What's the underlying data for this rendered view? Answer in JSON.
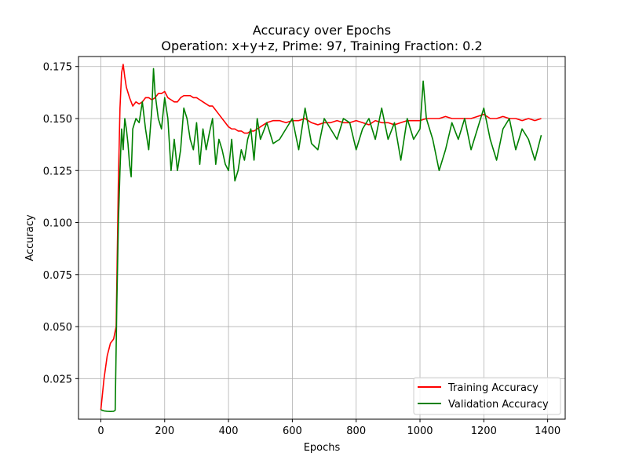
{
  "chart_data": {
    "type": "line",
    "title": "Accuracy over Epochs",
    "subtitle": "Operation: x+y+z, Prime: 97, Training Fraction: 0.2",
    "xlabel": "Epochs",
    "ylabel": "Accuracy",
    "xlim": [
      -70,
      1455
    ],
    "ylim": [
      0.0055,
      0.1798
    ],
    "x_ticks": [
      0,
      200,
      400,
      600,
      800,
      1000,
      1200,
      1400
    ],
    "y_ticks": [
      0.025,
      0.05,
      0.075,
      0.1,
      0.125,
      0.15,
      0.175
    ],
    "x_tick_labels": [
      "0",
      "200",
      "400",
      "600",
      "800",
      "1000",
      "1200",
      "1400"
    ],
    "y_tick_labels": [
      "0.025",
      "0.050",
      "0.075",
      "0.100",
      "0.125",
      "0.150",
      "0.175"
    ],
    "grid": true,
    "legend_position": "lower-right",
    "series": [
      {
        "name": "Training Accuracy",
        "color": "#ff0000",
        "x": [
          0,
          10,
          20,
          30,
          40,
          48,
          55,
          60,
          65,
          70,
          75,
          80,
          90,
          100,
          110,
          120,
          130,
          140,
          150,
          160,
          170,
          180,
          190,
          200,
          210,
          220,
          230,
          240,
          250,
          260,
          270,
          280,
          290,
          300,
          310,
          320,
          330,
          340,
          350,
          360,
          370,
          380,
          390,
          400,
          410,
          420,
          430,
          440,
          450,
          460,
          470,
          480,
          490,
          500,
          520,
          540,
          560,
          580,
          600,
          620,
          640,
          660,
          680,
          700,
          720,
          740,
          760,
          780,
          800,
          820,
          840,
          860,
          880,
          900,
          920,
          940,
          960,
          980,
          1000,
          1020,
          1040,
          1060,
          1080,
          1100,
          1120,
          1140,
          1160,
          1180,
          1200,
          1220,
          1240,
          1260,
          1280,
          1300,
          1320,
          1340,
          1360,
          1380
        ],
        "values": [
          0.01,
          0.025,
          0.036,
          0.042,
          0.044,
          0.05,
          0.12,
          0.155,
          0.172,
          0.176,
          0.17,
          0.165,
          0.16,
          0.156,
          0.158,
          0.157,
          0.158,
          0.16,
          0.16,
          0.159,
          0.16,
          0.162,
          0.162,
          0.163,
          0.16,
          0.159,
          0.158,
          0.158,
          0.16,
          0.161,
          0.161,
          0.161,
          0.16,
          0.16,
          0.159,
          0.158,
          0.157,
          0.156,
          0.156,
          0.154,
          0.152,
          0.15,
          0.148,
          0.146,
          0.145,
          0.145,
          0.144,
          0.144,
          0.143,
          0.143,
          0.144,
          0.144,
          0.145,
          0.146,
          0.148,
          0.149,
          0.149,
          0.148,
          0.149,
          0.149,
          0.15,
          0.148,
          0.147,
          0.148,
          0.148,
          0.149,
          0.148,
          0.148,
          0.149,
          0.148,
          0.147,
          0.149,
          0.148,
          0.148,
          0.147,
          0.148,
          0.149,
          0.149,
          0.149,
          0.15,
          0.15,
          0.15,
          0.151,
          0.15,
          0.15,
          0.15,
          0.15,
          0.151,
          0.152,
          0.15,
          0.15,
          0.151,
          0.15,
          0.15,
          0.149,
          0.15,
          0.149,
          0.15
        ]
      },
      {
        "name": "Validation Accuracy",
        "color": "#008000",
        "x": [
          0,
          10,
          20,
          30,
          40,
          45,
          50,
          55,
          60,
          65,
          70,
          75,
          80,
          85,
          90,
          95,
          100,
          110,
          120,
          130,
          140,
          150,
          160,
          165,
          170,
          180,
          190,
          200,
          210,
          220,
          230,
          240,
          250,
          260,
          270,
          280,
          290,
          300,
          310,
          320,
          330,
          340,
          350,
          360,
          370,
          380,
          390,
          400,
          410,
          420,
          430,
          440,
          450,
          460,
          470,
          480,
          490,
          500,
          520,
          540,
          560,
          580,
          600,
          620,
          640,
          660,
          680,
          700,
          720,
          740,
          760,
          780,
          800,
          820,
          840,
          860,
          880,
          900,
          920,
          940,
          960,
          980,
          1000,
          1010,
          1020,
          1040,
          1060,
          1080,
          1100,
          1120,
          1140,
          1160,
          1180,
          1200,
          1220,
          1240,
          1260,
          1280,
          1300,
          1320,
          1340,
          1360,
          1380
        ],
        "values": [
          0.01,
          0.0095,
          0.0093,
          0.0092,
          0.0093,
          0.0098,
          0.06,
          0.1,
          0.125,
          0.145,
          0.135,
          0.15,
          0.145,
          0.138,
          0.128,
          0.122,
          0.145,
          0.15,
          0.148,
          0.158,
          0.145,
          0.135,
          0.155,
          0.174,
          0.162,
          0.15,
          0.145,
          0.16,
          0.15,
          0.125,
          0.14,
          0.125,
          0.135,
          0.155,
          0.15,
          0.14,
          0.135,
          0.148,
          0.128,
          0.145,
          0.135,
          0.143,
          0.15,
          0.128,
          0.14,
          0.135,
          0.128,
          0.125,
          0.14,
          0.12,
          0.125,
          0.135,
          0.13,
          0.14,
          0.145,
          0.13,
          0.15,
          0.14,
          0.148,
          0.138,
          0.14,
          0.145,
          0.15,
          0.135,
          0.155,
          0.138,
          0.135,
          0.15,
          0.145,
          0.14,
          0.15,
          0.148,
          0.135,
          0.145,
          0.15,
          0.14,
          0.155,
          0.14,
          0.148,
          0.13,
          0.15,
          0.14,
          0.145,
          0.168,
          0.15,
          0.14,
          0.125,
          0.135,
          0.148,
          0.14,
          0.15,
          0.135,
          0.145,
          0.155,
          0.14,
          0.13,
          0.145,
          0.15,
          0.135,
          0.145,
          0.14,
          0.13,
          0.142
        ]
      }
    ]
  }
}
